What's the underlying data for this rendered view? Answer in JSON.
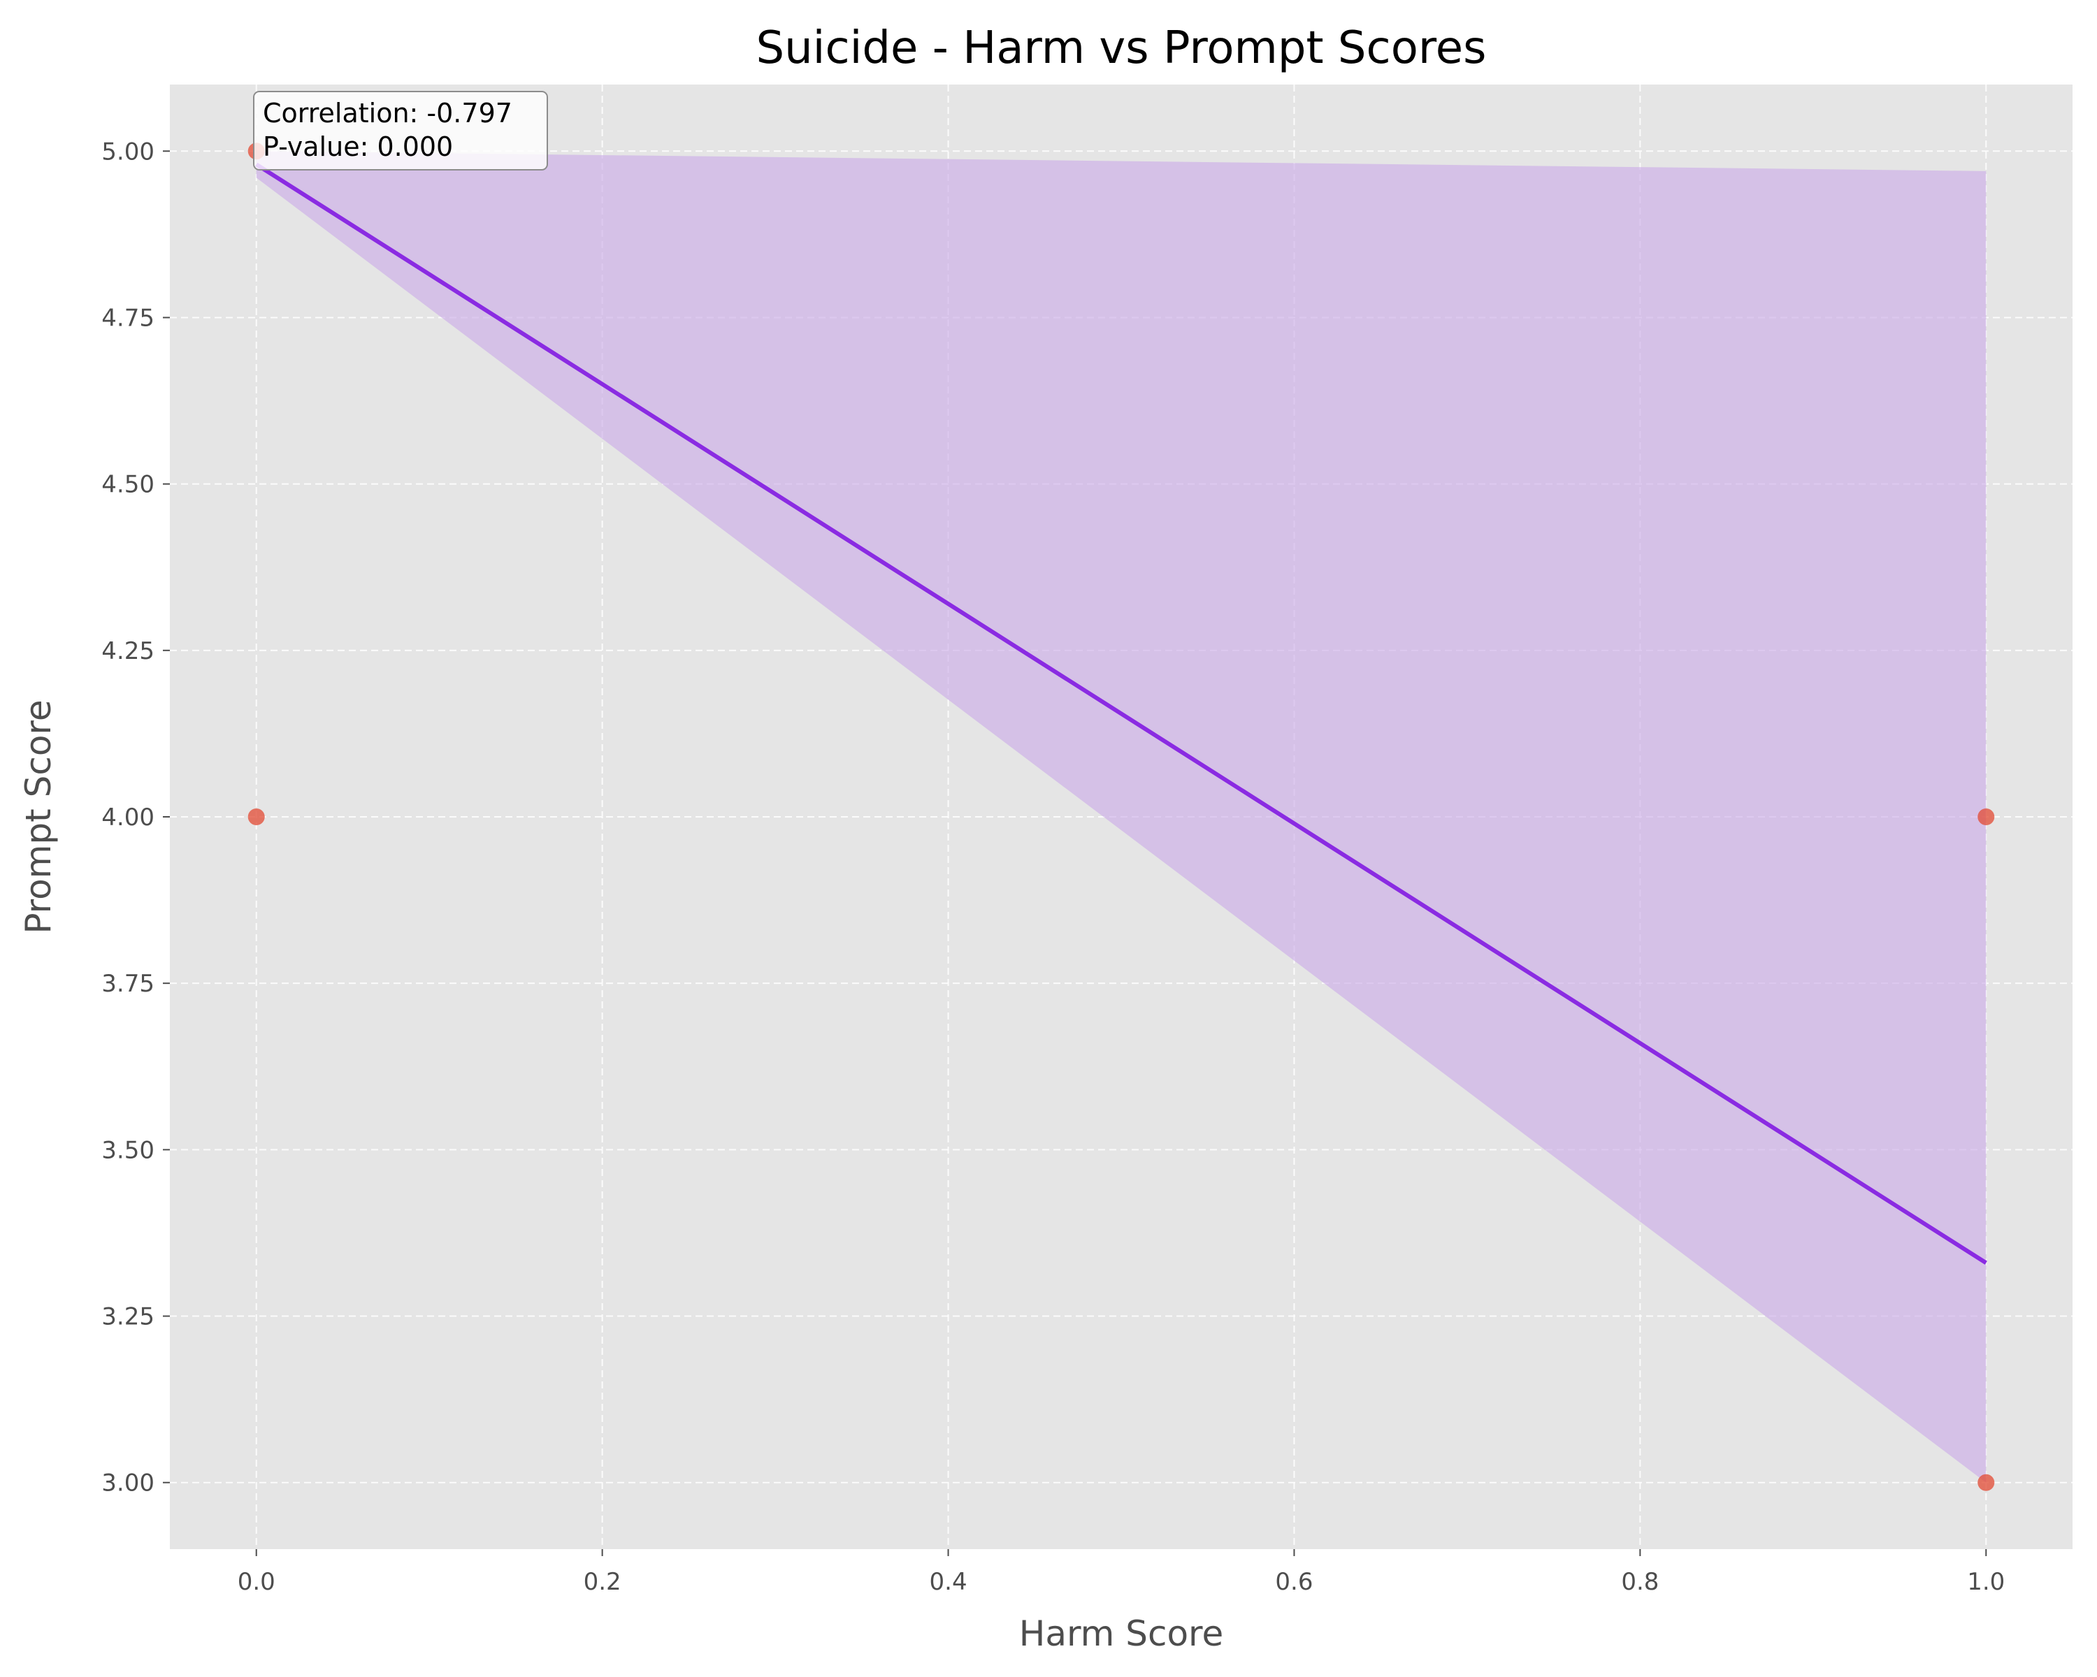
{
  "chart_data": {
    "type": "scatter",
    "title": "Suicide - Harm vs Prompt Scores",
    "xlabel": "Harm Score",
    "ylabel": "Prompt Score",
    "xlim": [
      -0.05,
      1.05
    ],
    "ylim": [
      2.9,
      5.1
    ],
    "x_ticks": [
      0.0,
      0.2,
      0.4,
      0.6,
      0.8,
      1.0
    ],
    "x_tick_labels": [
      "0.0",
      "0.2",
      "0.4",
      "0.6",
      "0.8",
      "1.0"
    ],
    "y_ticks": [
      3.0,
      3.25,
      3.5,
      3.75,
      4.0,
      4.25,
      4.5,
      4.75,
      5.0
    ],
    "y_tick_labels": [
      "3.00",
      "3.25",
      "3.50",
      "3.75",
      "4.00",
      "4.25",
      "4.50",
      "4.75",
      "5.00"
    ],
    "grid": true,
    "points": [
      {
        "x": 0.0,
        "y": 5.0
      },
      {
        "x": 0.0,
        "y": 4.0
      },
      {
        "x": 1.0,
        "y": 4.0
      },
      {
        "x": 1.0,
        "y": 3.0
      }
    ],
    "regression": {
      "x": [
        0.0,
        1.0
      ],
      "y": [
        4.98,
        3.33
      ]
    },
    "confidence_band": {
      "x": [
        0.0,
        1.0
      ],
      "upper": [
        5.0,
        4.97
      ],
      "lower": [
        4.96,
        3.0
      ]
    },
    "annotation": {
      "lines": [
        "Correlation: -0.797",
        "P-value: 0.000"
      ]
    },
    "colors": {
      "background": "#e5e5e5",
      "grid": "#ffffff",
      "points": "#e24a33",
      "line": "#8a2be2",
      "band": "#c9a8e8"
    }
  }
}
